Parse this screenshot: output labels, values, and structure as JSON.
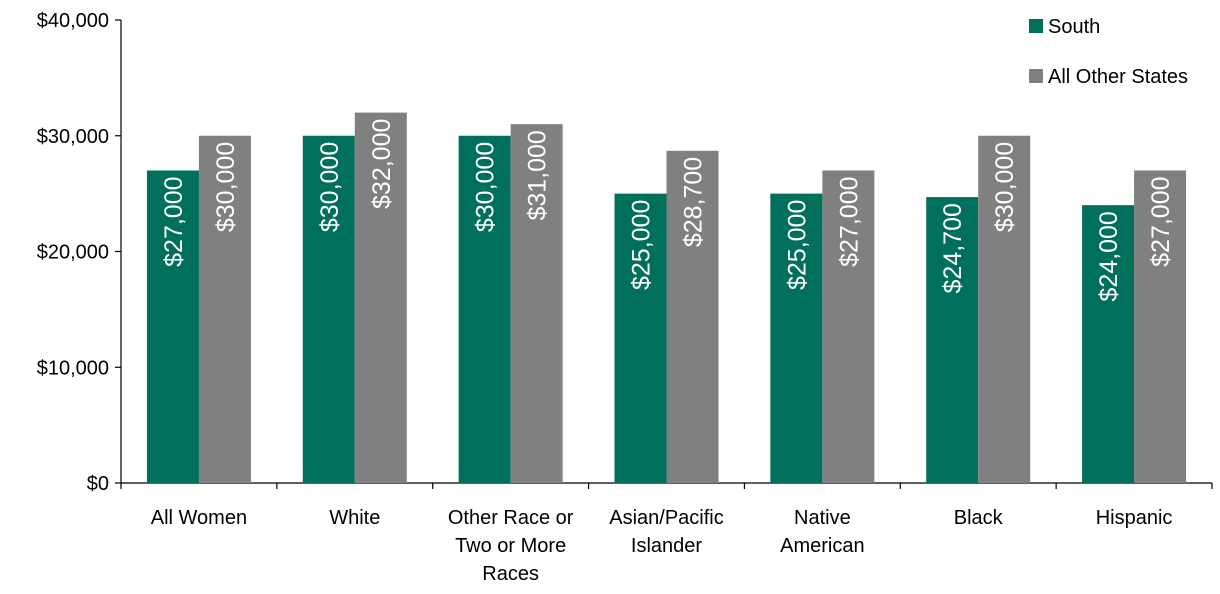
{
  "chart_data": {
    "type": "bar",
    "title": "",
    "xlabel": "",
    "ylabel": "",
    "ylim": [
      0,
      40000
    ],
    "y_ticks": [
      {
        "value": 0,
        "label": "$0"
      },
      {
        "value": 10000,
        "label": "$10,000"
      },
      {
        "value": 20000,
        "label": "$20,000"
      },
      {
        "value": 30000,
        "label": "$30,000"
      },
      {
        "value": 40000,
        "label": "$40,000"
      }
    ],
    "categories": [
      [
        "All Women"
      ],
      [
        "White"
      ],
      [
        "Other Race or",
        "Two or More",
        "Races"
      ],
      [
        "Asian/Pacific",
        "Islander"
      ],
      [
        "Native",
        "American"
      ],
      [
        "Black"
      ],
      [
        "Hispanic"
      ]
    ],
    "series": [
      {
        "name": "South",
        "color": "#006f5c",
        "values": [
          27000,
          30000,
          30000,
          25000,
          25000,
          24700,
          24000
        ],
        "labels": [
          "$27,000",
          "$30,000",
          "$30,000",
          "$25,000",
          "$25,000",
          "$24,700",
          "$24,000"
        ]
      },
      {
        "name": "All Other States",
        "color": "#808080",
        "values": [
          30000,
          32000,
          31000,
          28700,
          27000,
          30000,
          27000
        ],
        "labels": [
          "$30,000",
          "$32,000",
          "$31,000",
          "$28,700",
          "$27,000",
          "$30,000",
          "$27,000"
        ]
      }
    ],
    "grid": false,
    "legend": "top-right"
  }
}
